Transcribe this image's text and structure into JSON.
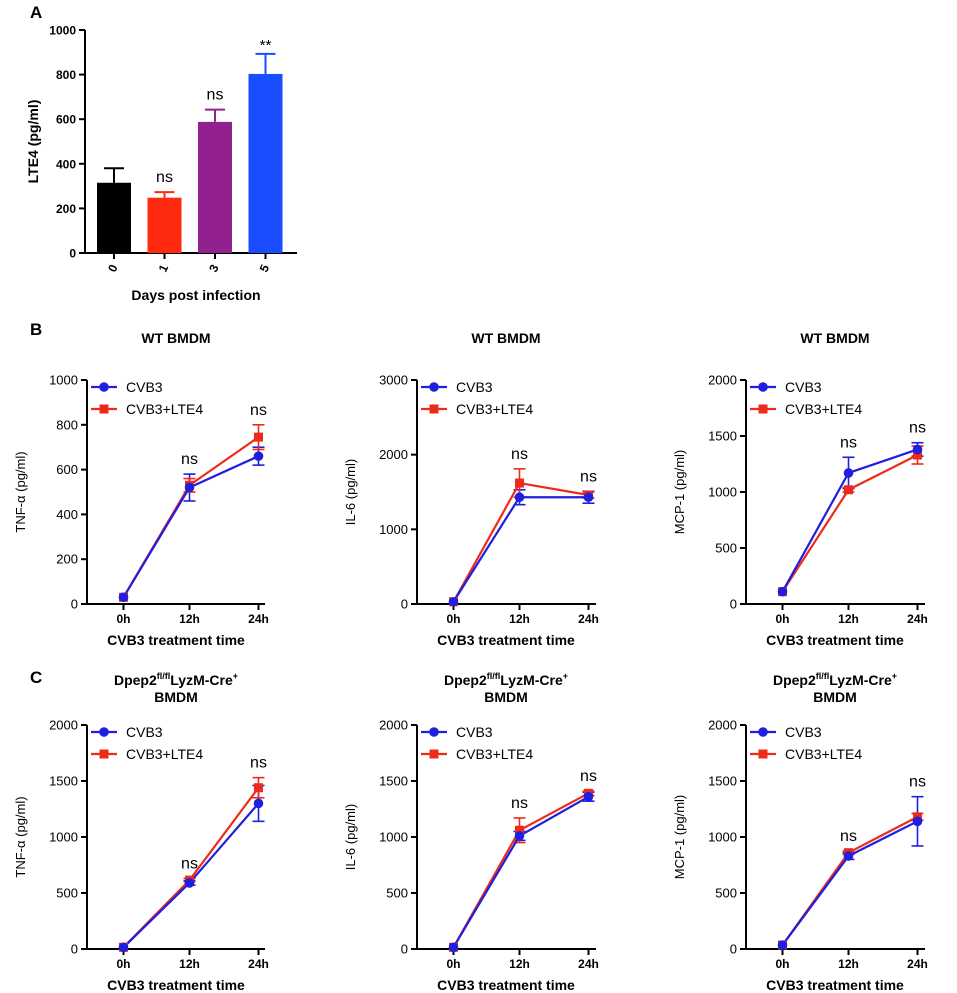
{
  "panel_labels": {
    "a": "A",
    "b": "B",
    "c": "C"
  },
  "colors": {
    "cvb3": "#1f1fe0",
    "cvb3_lte4": "#ee2a1a",
    "axis": "#000000"
  },
  "chart_data": [
    {
      "id": "A",
      "type": "bar",
      "title": "",
      "xlabel": "Days post infection",
      "ylabel": "LTE4 (pg/ml)",
      "ylim": [
        0,
        1000
      ],
      "yticks": [
        "0",
        "200",
        "400",
        "600",
        "800",
        "1000"
      ],
      "categories": [
        "0",
        "1",
        "3",
        "5"
      ],
      "values": [
        315,
        248,
        588,
        803
      ],
      "errors": [
        65,
        25,
        55,
        90
      ],
      "bar_colors": [
        "#000000",
        "#ff2a10",
        "#92218f",
        "#1a4dff"
      ],
      "annotations": [
        "",
        "ns",
        "ns",
        "**"
      ]
    },
    {
      "id": "B1",
      "type": "line",
      "title": "WT BMDM",
      "xlabel": "CVB3 treatment time",
      "ylabel": "TNF-α (pg/ml)",
      "ylim": [
        0,
        1000
      ],
      "yticks": [
        "0",
        "200",
        "400",
        "600",
        "800",
        "1000"
      ],
      "categories": [
        "0h",
        "12h",
        "24h"
      ],
      "series": [
        {
          "name": "CVB3",
          "values": [
            30,
            520,
            660
          ],
          "errors": [
            0,
            60,
            40
          ]
        },
        {
          "name": "CVB3+LTE4",
          "values": [
            30,
            530,
            745
          ],
          "errors": [
            0,
            30,
            55
          ]
        }
      ],
      "annotations": [
        "",
        "ns",
        "ns"
      ]
    },
    {
      "id": "B2",
      "type": "line",
      "title": "WT BMDM",
      "xlabel": "CVB3 treatment time",
      "ylabel": "IL-6 (pg/ml)",
      "ylim": [
        0,
        3000
      ],
      "yticks": [
        "0",
        "1000",
        "2000",
        "3000"
      ],
      "categories": [
        "0h",
        "12h",
        "24h"
      ],
      "series": [
        {
          "name": "CVB3",
          "values": [
            30,
            1430,
            1430
          ],
          "errors": [
            0,
            100,
            80
          ]
        },
        {
          "name": "CVB3+LTE4",
          "values": [
            30,
            1620,
            1460
          ],
          "errors": [
            0,
            190,
            40
          ]
        }
      ],
      "annotations": [
        "",
        "ns",
        "ns"
      ]
    },
    {
      "id": "B3",
      "type": "line",
      "title": "WT BMDM",
      "xlabel": "CVB3 treatment time",
      "ylabel": "MCP-1 (pg/ml)",
      "ylim": [
        0,
        2000
      ],
      "yticks": [
        "0",
        "500",
        "1000",
        "1500",
        "2000"
      ],
      "categories": [
        "0h",
        "12h",
        "24h"
      ],
      "series": [
        {
          "name": "CVB3",
          "values": [
            110,
            1170,
            1380
          ],
          "errors": [
            0,
            140,
            60
          ]
        },
        {
          "name": "CVB3+LTE4",
          "values": [
            110,
            1020,
            1330
          ],
          "errors": [
            0,
            20,
            80
          ]
        }
      ],
      "annotations": [
        "",
        "ns",
        "ns"
      ]
    },
    {
      "id": "C1",
      "type": "line",
      "title": "Dpep2",
      "title_sup": "fl/fl",
      "title_mid": "LyzM-Cre",
      "title_sup2": "+",
      "title_line2": "BMDM",
      "xlabel": "CVB3 treatment time",
      "ylabel": "TNF-α (pg/ml)",
      "ylim": [
        0,
        2000
      ],
      "yticks": [
        "0",
        "500",
        "1000",
        "1500",
        "2000"
      ],
      "categories": [
        "0h",
        "12h",
        "24h"
      ],
      "series": [
        {
          "name": "CVB3",
          "values": [
            15,
            590,
            1300
          ],
          "errors": [
            0,
            20,
            160
          ]
        },
        {
          "name": "CVB3+LTE4",
          "values": [
            15,
            615,
            1440
          ],
          "errors": [
            0,
            15,
            90
          ]
        }
      ],
      "annotations": [
        "",
        "ns",
        "ns"
      ]
    },
    {
      "id": "C2",
      "type": "line",
      "title": "Dpep2",
      "title_sup": "fl/fl",
      "title_mid": "LyzM-Cre",
      "title_sup2": "+",
      "title_line2": "BMDM",
      "xlabel": "CVB3 treatment time",
      "ylabel": "IL-6 (pg/ml)",
      "ylim": [
        0,
        2000
      ],
      "yticks": [
        "0",
        "500",
        "1000",
        "1500",
        "2000"
      ],
      "categories": [
        "0h",
        "12h",
        "24h"
      ],
      "series": [
        {
          "name": "CVB3",
          "values": [
            15,
            1010,
            1360
          ],
          "errors": [
            0,
            40,
            40
          ]
        },
        {
          "name": "CVB3+LTE4",
          "values": [
            15,
            1060,
            1390
          ],
          "errors": [
            0,
            110,
            20
          ]
        }
      ],
      "annotations": [
        "",
        "ns",
        "ns"
      ]
    },
    {
      "id": "C3",
      "type": "line",
      "title": "Dpep2",
      "title_sup": "fl/fl",
      "title_mid": "LyzM-Cre",
      "title_sup2": "+",
      "title_line2": "BMDM",
      "xlabel": "CVB3 treatment time",
      "ylabel": "MCP-1 (pg/ml)",
      "ylim": [
        0,
        2000
      ],
      "yticks": [
        "0",
        "500",
        "1000",
        "1500",
        "2000"
      ],
      "categories": [
        "0h",
        "12h",
        "24h"
      ],
      "series": [
        {
          "name": "CVB3",
          "values": [
            35,
            830,
            1140
          ],
          "errors": [
            0,
            30,
            220
          ]
        },
        {
          "name": "CVB3+LTE4",
          "values": [
            35,
            860,
            1180
          ],
          "errors": [
            0,
            15,
            30
          ]
        }
      ],
      "annotations": [
        "",
        "ns",
        "ns"
      ]
    }
  ]
}
